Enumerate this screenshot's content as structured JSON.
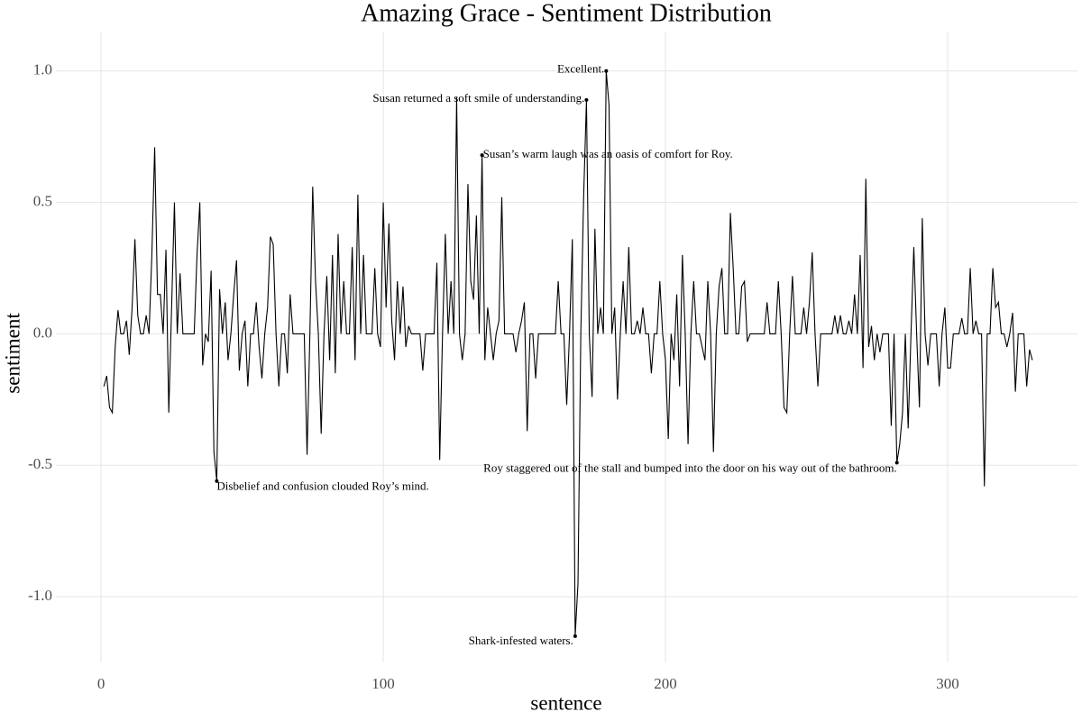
{
  "chart_data": {
    "type": "line",
    "title": "Amazing Grace - Sentiment Distribution",
    "x_label": "sentence",
    "y_label": "sentiment",
    "color": "#000000",
    "grid": true,
    "xlim": [
      -16,
      346
    ],
    "ylim": [
      -1.25,
      1.15
    ],
    "xticks": [
      0,
      100,
      200,
      300
    ],
    "yticks": [
      {
        "value": -1.0,
        "label": "-1.0"
      },
      {
        "value": -0.5,
        "label": "-0.5"
      },
      {
        "value": 0,
        "label": "0.0"
      },
      {
        "value": 0.5,
        "label": "0.5"
      },
      {
        "value": 1.0,
        "label": "1.0"
      }
    ],
    "x": [
      1,
      2,
      3,
      4,
      5,
      6,
      7,
      8,
      9,
      10,
      11,
      12,
      13,
      14,
      15,
      16,
      17,
      18,
      19,
      20,
      21,
      22,
      23,
      24,
      25,
      26,
      27,
      28,
      29,
      30,
      31,
      32,
      33,
      34,
      35,
      36,
      37,
      38,
      39,
      40,
      41,
      42,
      43,
      44,
      45,
      46,
      47,
      48,
      49,
      50,
      51,
      52,
      53,
      54,
      55,
      56,
      57,
      58,
      59,
      60,
      61,
      62,
      63,
      64,
      65,
      66,
      67,
      68,
      69,
      70,
      71,
      72,
      73,
      74,
      75,
      76,
      77,
      78,
      79,
      80,
      81,
      82,
      83,
      84,
      85,
      86,
      87,
      88,
      89,
      90,
      91,
      92,
      93,
      94,
      95,
      96,
      97,
      98,
      99,
      100,
      101,
      102,
      103,
      104,
      105,
      106,
      107,
      108,
      109,
      110,
      111,
      112,
      113,
      114,
      115,
      116,
      117,
      118,
      119,
      120,
      121,
      122,
      123,
      124,
      125,
      126,
      127,
      128,
      129,
      130,
      131,
      132,
      133,
      134,
      135,
      136,
      137,
      138,
      139,
      140,
      141,
      142,
      143,
      144,
      145,
      146,
      147,
      148,
      149,
      150,
      151,
      152,
      153,
      154,
      155,
      156,
      157,
      158,
      159,
      160,
      161,
      162,
      163,
      164,
      165,
      166,
      167,
      168,
      169,
      170,
      171,
      172,
      173,
      174,
      175,
      176,
      177,
      178,
      179,
      180,
      181,
      182,
      183,
      184,
      185,
      186,
      187,
      188,
      189,
      190,
      191,
      192,
      193,
      194,
      195,
      196,
      197,
      198,
      199,
      200,
      201,
      202,
      203,
      204,
      205,
      206,
      207,
      208,
      209,
      210,
      211,
      212,
      213,
      214,
      215,
      216,
      217,
      218,
      219,
      220,
      221,
      222,
      223,
      224,
      225,
      226,
      227,
      228,
      229,
      230,
      231,
      232,
      233,
      234,
      235,
      236,
      237,
      238,
      239,
      240,
      241,
      242,
      243,
      244,
      245,
      246,
      247,
      248,
      249,
      250,
      251,
      252,
      253,
      254,
      255,
      256,
      257,
      258,
      259,
      260,
      261,
      262,
      263,
      264,
      265,
      266,
      267,
      268,
      269,
      270,
      271,
      272,
      273,
      274,
      275,
      276,
      277,
      278,
      279,
      280,
      281,
      282,
      283,
      284,
      285,
      286,
      287,
      288,
      289,
      290,
      291,
      292,
      293,
      294,
      295,
      296,
      297,
      298,
      299,
      300,
      301,
      302,
      303,
      304,
      305,
      306,
      307,
      308,
      309,
      310,
      311,
      312,
      313,
      314,
      315,
      316,
      317,
      318,
      319,
      320,
      321,
      322,
      323,
      324,
      325,
      326,
      327,
      328,
      329,
      330
    ],
    "values": [
      -0.2,
      -0.16,
      -0.28,
      -0.3,
      -0.05,
      0.09,
      0.0,
      0.0,
      0.05,
      -0.08,
      0.1,
      0.36,
      0.07,
      0.0,
      0.0,
      0.07,
      0.0,
      0.3,
      0.71,
      0.15,
      0.15,
      0.0,
      0.32,
      -0.3,
      0.1,
      0.5,
      0.0,
      0.23,
      0.0,
      0.0,
      0.0,
      0.0,
      0.0,
      0.3,
      0.5,
      -0.12,
      0.0,
      -0.03,
      0.24,
      -0.45,
      -0.56,
      0.17,
      0.0,
      0.12,
      -0.1,
      0.0,
      0.15,
      0.28,
      -0.14,
      0.0,
      0.05,
      -0.2,
      0.0,
      0.0,
      0.12,
      -0.05,
      -0.17,
      0.0,
      0.1,
      0.37,
      0.34,
      0.0,
      -0.2,
      0.0,
      0.0,
      -0.15,
      0.15,
      0.0,
      0.0,
      0.0,
      0.0,
      0.0,
      -0.46,
      0.0,
      0.56,
      0.2,
      0.0,
      -0.38,
      0.0,
      0.22,
      -0.1,
      0.3,
      -0.15,
      0.38,
      0.0,
      0.2,
      0.0,
      0.0,
      0.33,
      -0.1,
      0.53,
      0.0,
      0.3,
      0.0,
      0.0,
      0.0,
      0.25,
      0.0,
      -0.05,
      0.5,
      0.1,
      0.42,
      0.05,
      -0.1,
      0.2,
      0.0,
      0.18,
      -0.05,
      0.03,
      0.0,
      0.0,
      0.0,
      0.0,
      -0.14,
      0.0,
      0.0,
      0.0,
      0.0,
      0.27,
      -0.48,
      0.0,
      0.38,
      0.0,
      0.2,
      0.0,
      0.9,
      0.0,
      -0.1,
      0.0,
      0.57,
      0.2,
      0.13,
      0.45,
      0.0,
      0.68,
      -0.1,
      0.1,
      0.0,
      -0.1,
      0.0,
      0.05,
      0.52,
      0.0,
      0.0,
      0.0,
      0.0,
      -0.07,
      0.0,
      0.05,
      0.12,
      -0.37,
      0.0,
      0.0,
      -0.17,
      0.0,
      0.0,
      0.0,
      0.0,
      0.0,
      0.0,
      0.0,
      0.2,
      0.0,
      0.0,
      -0.27,
      0.0,
      0.36,
      -1.15,
      -0.95,
      0.0,
      0.52,
      0.89,
      0.0,
      -0.24,
      0.4,
      0.0,
      0.1,
      0.0,
      1.0,
      0.87,
      0.0,
      0.1,
      -0.25,
      0.0,
      0.2,
      0.0,
      0.33,
      0.0,
      0.0,
      0.05,
      0.0,
      0.1,
      0.0,
      0.0,
      -0.15,
      0.0,
      0.0,
      0.2,
      0.0,
      -0.1,
      -0.4,
      0.0,
      -0.1,
      0.15,
      -0.2,
      0.3,
      0.0,
      -0.42,
      0.0,
      0.2,
      0.0,
      0.0,
      -0.05,
      -0.1,
      0.2,
      0.0,
      -0.45,
      0.0,
      0.18,
      0.25,
      0.0,
      0.0,
      0.46,
      0.25,
      0.0,
      0.0,
      0.18,
      0.2,
      -0.03,
      0.0,
      0.0,
      0.0,
      0.0,
      0.0,
      0.0,
      0.12,
      0.0,
      0.0,
      0.0,
      0.2,
      0.0,
      -0.28,
      -0.3,
      0.0,
      0.22,
      0.0,
      0.0,
      0.0,
      0.1,
      0.0,
      0.12,
      0.31,
      0.0,
      -0.2,
      0.0,
      0.0,
      0.0,
      0.0,
      0.0,
      0.07,
      0.0,
      0.07,
      0.0,
      0.0,
      0.05,
      0.0,
      0.15,
      0.0,
      0.3,
      -0.13,
      0.59,
      -0.05,
      0.03,
      -0.1,
      0.0,
      -0.07,
      0.0,
      0.0,
      0.0,
      -0.35,
      0.0,
      -0.49,
      -0.42,
      -0.3,
      0.0,
      -0.36,
      0.0,
      0.33,
      0.0,
      -0.28,
      0.44,
      0.0,
      -0.12,
      0.0,
      0.0,
      0.0,
      -0.2,
      0.0,
      0.1,
      -0.13,
      -0.13,
      0.0,
      0.0,
      0.0,
      0.06,
      0.0,
      0.0,
      0.25,
      0.0,
      0.05,
      0.0,
      0.0,
      -0.58,
      0.0,
      0.0,
      0.25,
      0.1,
      0.12,
      0.0,
      0.0,
      -0.05,
      0.0,
      0.08,
      -0.22,
      0.0,
      0.0,
      0.0,
      -0.2,
      -0.06,
      -0.1
    ],
    "annotations": [
      {
        "text": "Excellent.",
        "x": 179,
        "y": 1.0
      },
      {
        "text": "Susan returned a soft smile of understanding.",
        "x": 172,
        "y": 0.89
      },
      {
        "text": "Susan’s warm laugh was an oasis of comfort for Roy.",
        "x": 135,
        "y": 0.68
      },
      {
        "text": "Disbelief and confusion clouded Roy’s mind.",
        "x": 41,
        "y": -0.56
      },
      {
        "text": "Roy staggered out of the stall and bumped into the door on his way out of the bathroom.",
        "x": 282,
        "y": -0.49
      },
      {
        "text": "Shark-infested waters.",
        "x": 168,
        "y": -1.15
      }
    ]
  }
}
